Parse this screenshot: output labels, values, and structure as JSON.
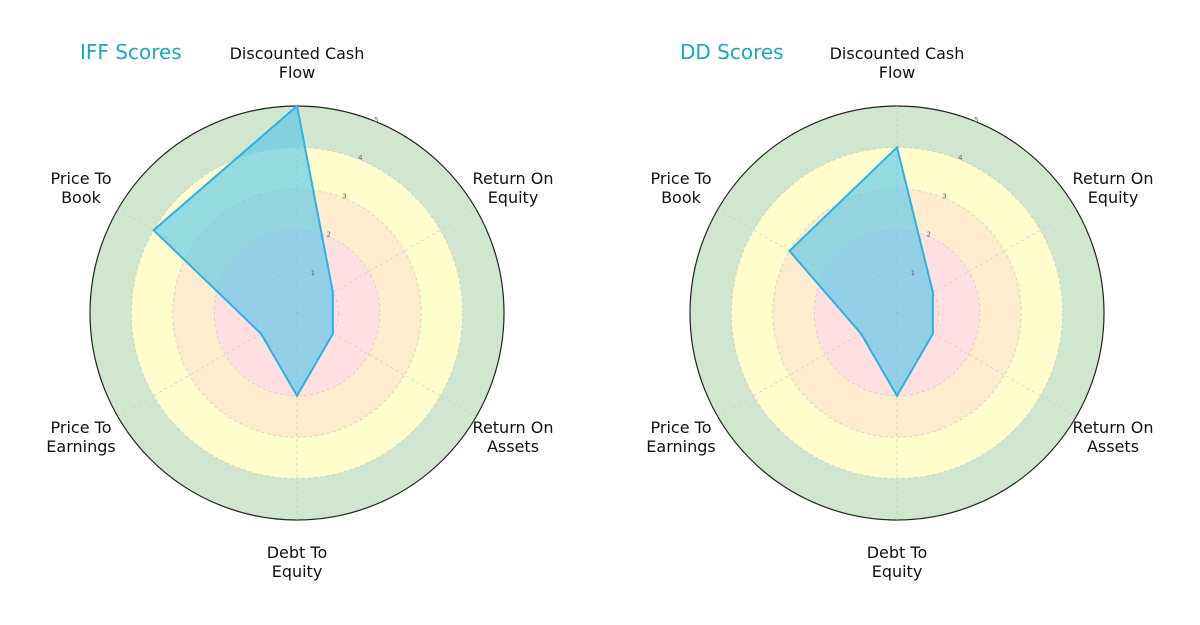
{
  "colors": {
    "zone_green": "#d0e6cf",
    "zone_yellow": "#fefdcb",
    "zone_orange": "#ffebcd",
    "zone_red": "#ffdfdf",
    "polygon_fill": "#5bc8e8",
    "polygon_stroke": "#2ab3e6",
    "title": "#17a8c7"
  },
  "chart_data": [
    {
      "type": "radar",
      "title": "IFF Scores",
      "axes": [
        "Discounted Cash\nFlow",
        "Return On\nEquity",
        "Return On\nAssets",
        "Debt To\nEquity",
        "Price To\nEarnings",
        "Price To\nBook"
      ],
      "values": [
        5,
        1,
        1,
        2,
        1,
        4
      ],
      "rlim": [
        0,
        5
      ],
      "ticks": [
        "1",
        "2",
        "3",
        "4",
        "5"
      ]
    },
    {
      "type": "radar",
      "title": "DD Scores",
      "axes": [
        "Discounted Cash\nFlow",
        "Return On\nEquity",
        "Return On\nAssets",
        "Debt To\nEquity",
        "Price To\nEarnings",
        "Price To\nBook"
      ],
      "values": [
        4,
        1,
        1,
        2,
        1,
        3
      ],
      "rlim": [
        0,
        5
      ],
      "ticks": [
        "1",
        "2",
        "3",
        "4",
        "5"
      ]
    }
  ]
}
